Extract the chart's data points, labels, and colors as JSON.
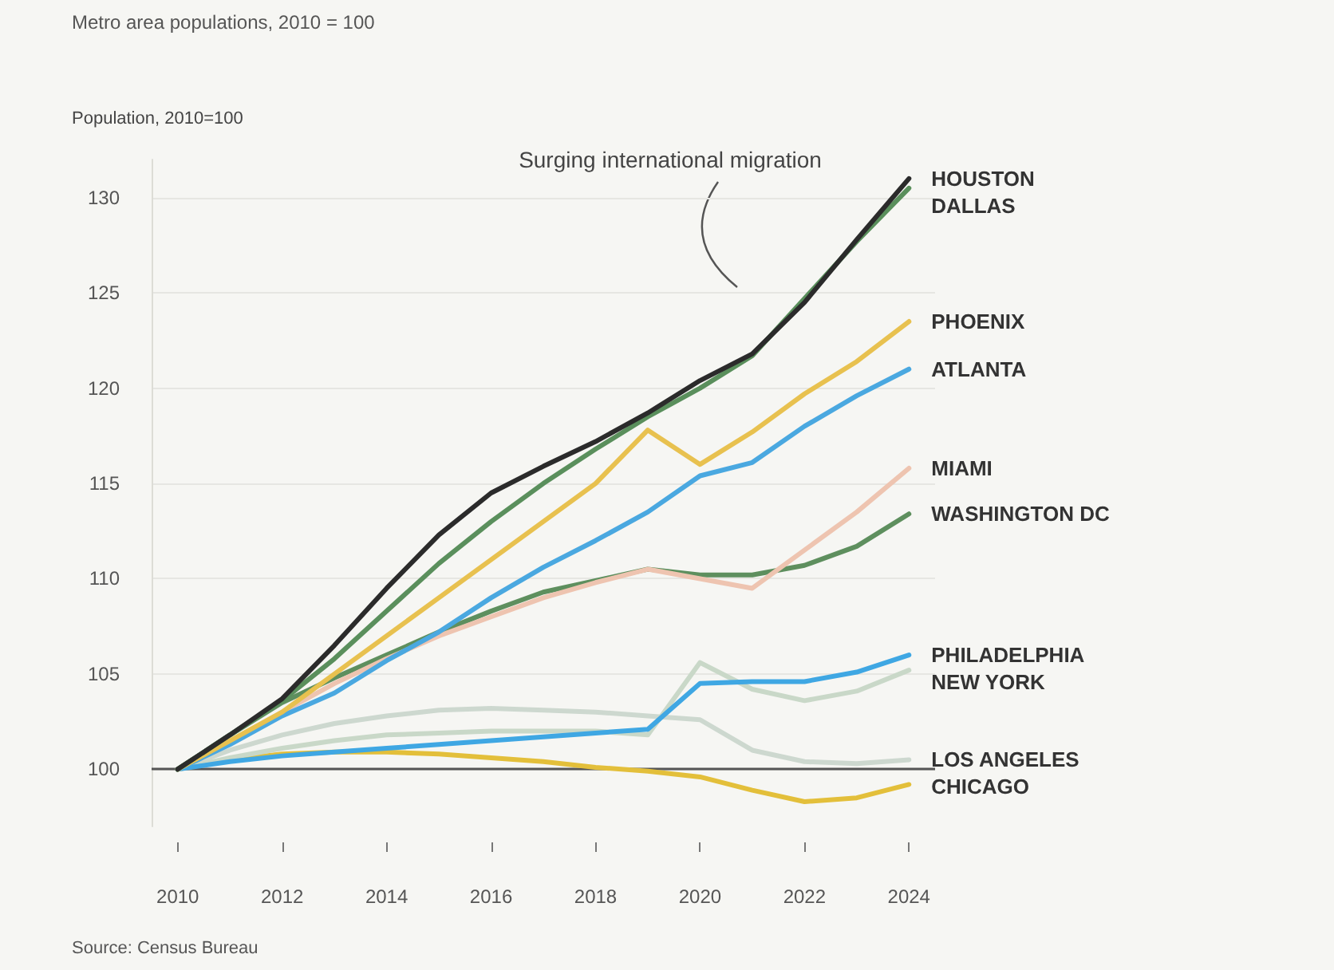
{
  "chart_data": {
    "type": "line",
    "subtitle": "Metro area populations, 2010 = 100",
    "ylabel": "Population, 2010=100",
    "annotations": [
      "Surging international migration",
      "Source: Census Bureau"
    ],
    "x": [
      2010,
      2011,
      2012,
      2013,
      2014,
      2015,
      2016,
      2017,
      2018,
      2019,
      2020,
      2021,
      2022,
      2023,
      2024
    ],
    "series": [
      {
        "name": "HOUSTON",
        "color": "#2b2b2b",
        "values": [
          100,
          101.8,
          103.7,
          106.5,
          109.5,
          112.3,
          114.5,
          115.9,
          117.2,
          118.7,
          120.4,
          121.8,
          124.5,
          127.8,
          131
        ]
      },
      {
        "name": "DALLAS",
        "color": "#5a8f5c",
        "values": [
          100,
          101.8,
          103.6,
          105.8,
          108.3,
          110.8,
          113,
          115,
          116.8,
          118.5,
          120,
          121.7,
          124.7,
          127.7,
          130.5
        ]
      },
      {
        "name": "PHOENIX",
        "color": "#e8c14f",
        "values": [
          100,
          101.5,
          103,
          105,
          107,
          109,
          111,
          113,
          115,
          117.8,
          116,
          117.7,
          119.7,
          121.4,
          123.5
        ]
      },
      {
        "name": "ATLANTA",
        "color": "#4aa8e0",
        "values": [
          100,
          101.3,
          102.8,
          104,
          105.7,
          107.2,
          109,
          110.6,
          112,
          113.5,
          115.4,
          116.1,
          118,
          119.6,
          121
        ]
      },
      {
        "name": "MIAMI",
        "color": "#eec4b0",
        "values": [
          100,
          101.4,
          103,
          104.5,
          105.8,
          107,
          108,
          109,
          109.8,
          110.5,
          110,
          109.5,
          111.5,
          113.5,
          115.8
        ]
      },
      {
        "name": "WASHINGTON DC",
        "color": "#5e8f5e",
        "values": [
          100,
          101.8,
          103.5,
          104.8,
          106,
          107.2,
          108.3,
          109.3,
          109.9,
          110.5,
          110.2,
          110.2,
          110.7,
          111.7,
          113.4
        ]
      },
      {
        "name": "PHILADELPHIA",
        "color": "#3fa7e3",
        "values": [
          100,
          100.4,
          100.7,
          100.9,
          101.1,
          101.3,
          101.5,
          101.7,
          101.9,
          102.1,
          104.5,
          104.6,
          104.6,
          105.1,
          106
        ]
      },
      {
        "name": "NEW YORK",
        "color": "#c9d8c8",
        "values": [
          100,
          100.6,
          101.1,
          101.5,
          101.8,
          101.9,
          102,
          102,
          102,
          101.8,
          105.6,
          104.2,
          103.6,
          104.1,
          105.2
        ]
      },
      {
        "name": "LOS ANGELES",
        "color": "#cdd8cf",
        "values": [
          100,
          101,
          101.8,
          102.4,
          102.8,
          103.1,
          103.2,
          103.1,
          103,
          102.8,
          102.6,
          101,
          100.4,
          100.3,
          100.5
        ]
      },
      {
        "name": "CHICAGO",
        "color": "#e3bf3a",
        "values": [
          100,
          100.5,
          100.8,
          100.9,
          100.9,
          100.8,
          100.6,
          100.4,
          100.1,
          99.9,
          99.6,
          98.9,
          98.3,
          98.5,
          99.2
        ]
      }
    ],
    "xlim": [
      2009.5,
      2024.5
    ],
    "xticks": [
      2010,
      2012,
      2014,
      2016,
      2018,
      2020,
      2022,
      2024
    ],
    "ylim": [
      97,
      132
    ],
    "yticks": [
      100,
      105,
      110,
      115,
      120,
      125,
      130
    ],
    "grid": "y",
    "legend": false,
    "ref_lines": [
      {
        "axis": "y",
        "value": 100,
        "color": "#555555"
      }
    ]
  }
}
